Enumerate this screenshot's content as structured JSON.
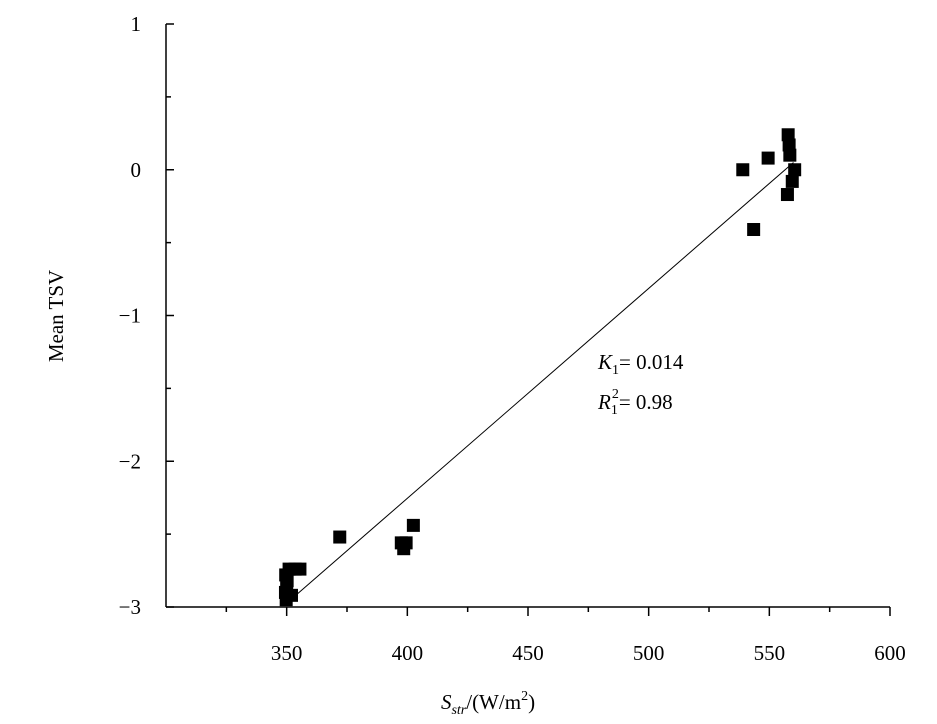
{
  "chart_data": {
    "type": "scatter",
    "title": "",
    "xlabel": {
      "main": "S",
      "sub": "str",
      "unit_prefix": "/(W/m",
      "unit_sup": "2",
      "unit_suffix": ")"
    },
    "ylabel": "Mean TSV",
    "xlim": [
      300,
      600
    ],
    "ylim": [
      -3,
      1
    ],
    "xticks": [
      350,
      400,
      450,
      500,
      550,
      600
    ],
    "xtick_labels": [
      "350",
      "400",
      "450",
      "500",
      "550",
      "600"
    ],
    "yticks": [
      1,
      0,
      -1,
      -2,
      -3
    ],
    "ytick_labels": [
      "1",
      "0",
      "−1",
      "−2",
      "−3"
    ],
    "grid": false,
    "legend": "none",
    "marker_color": "#000000",
    "points": [
      {
        "x": 349.8,
        "y": -2.95
      },
      {
        "x": 349.5,
        "y": -2.9
      },
      {
        "x": 350.0,
        "y": -2.86
      },
      {
        "x": 350.2,
        "y": -2.82
      },
      {
        "x": 349.6,
        "y": -2.78
      },
      {
        "x": 352.0,
        "y": -2.92
      },
      {
        "x": 351.0,
        "y": -2.74
      },
      {
        "x": 353.5,
        "y": -2.74
      },
      {
        "x": 355.5,
        "y": -2.74
      },
      {
        "x": 372.0,
        "y": -2.52
      },
      {
        "x": 397.5,
        "y": -2.56
      },
      {
        "x": 398.5,
        "y": -2.6
      },
      {
        "x": 399.5,
        "y": -2.56
      },
      {
        "x": 402.5,
        "y": -2.44
      },
      {
        "x": 539.0,
        "y": 0.0
      },
      {
        "x": 543.5,
        "y": -0.41
      },
      {
        "x": 549.5,
        "y": 0.08
      },
      {
        "x": 557.8,
        "y": 0.24
      },
      {
        "x": 558.2,
        "y": 0.17
      },
      {
        "x": 558.5,
        "y": 0.1
      },
      {
        "x": 557.5,
        "y": -0.17
      },
      {
        "x": 559.5,
        "y": -0.08
      },
      {
        "x": 560.5,
        "y": 0.0
      }
    ],
    "fit_line": {
      "x": [
        351,
        560
      ],
      "y": [
        -2.96,
        0.05
      ],
      "color": "#000000"
    },
    "annotations": {
      "k_main": "K",
      "k_sub": "1",
      "k_value": "= 0.014",
      "r_main": "R",
      "r_sub": "1",
      "r_sup": "2",
      "r_value": "= 0.98"
    }
  }
}
